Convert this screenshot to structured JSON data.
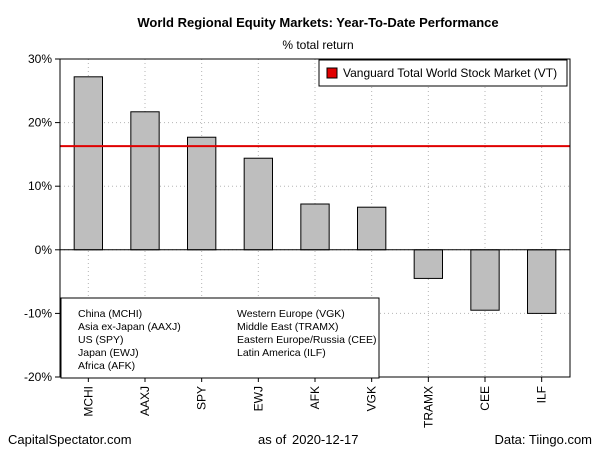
{
  "chart_data": {
    "type": "bar",
    "title": "World Regional Equity Markets: Year-To-Date Performance",
    "subtitle": "% total return",
    "categories": [
      "MCHI",
      "AAXJ",
      "SPY",
      "EWJ",
      "AFK",
      "VGK",
      "TRAMX",
      "CEE",
      "ILF"
    ],
    "values": [
      27.2,
      21.7,
      17.7,
      14.4,
      7.2,
      6.7,
      -4.5,
      -9.5,
      -10.0
    ],
    "ylim": [
      -20,
      30
    ],
    "yticks": [
      -20,
      -10,
      0,
      10,
      20,
      30
    ],
    "ytick_labels": [
      "-20%",
      "-10%",
      "0%",
      "10%",
      "20%",
      "30%"
    ],
    "bar_color": "#bebebe",
    "grid": true,
    "reference_line": {
      "name": "Vanguard Total World Stock Market (VT)",
      "value": 16.3,
      "color": "#e00000"
    },
    "legend_position": "top-right",
    "notes": [
      "China (MCHI)",
      "Asia ex-Japan (AAXJ)",
      "US (SPY)",
      "Japan (EWJ)",
      "Africa (AFK)",
      "Western Europe (VGK)",
      "Middle East (TRAMX)",
      "Eastern Europe/Russia (CEE)",
      "Latin America (ILF)"
    ],
    "notes_position": "bottom-left"
  },
  "footer": {
    "source_site": "CapitalSpectator.com",
    "as_of_label": "as of",
    "as_of_date": "2020-12-17",
    "data_source": "Data: Tiingo.com"
  }
}
